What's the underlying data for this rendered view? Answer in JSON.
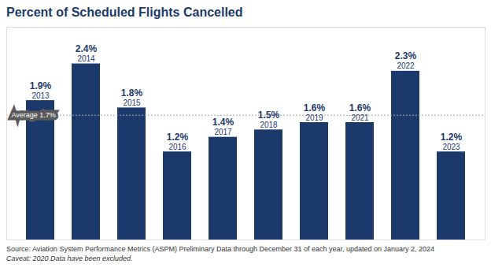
{
  "chart_data": {
    "type": "bar",
    "title": "Percent of Scheduled Flights Cancelled",
    "categories": [
      "2013",
      "2014",
      "2015",
      "2016",
      "2017",
      "2018",
      "2019",
      "2021",
      "2022",
      "2023"
    ],
    "values": [
      1.9,
      2.4,
      1.8,
      1.2,
      1.4,
      1.5,
      1.6,
      1.6,
      2.3,
      1.2
    ],
    "value_labels": [
      "1.9%",
      "2.4%",
      "1.8%",
      "1.2%",
      "1.4%",
      "1.5%",
      "1.6%",
      "1.6%",
      "2.3%",
      "1.2%"
    ],
    "color": "#1b3a6b",
    "ylim": [
      0,
      2.9
    ],
    "average": 1.7,
    "average_label": "Average 1.7%",
    "source": "Source: Aviation System Performance Metrics (ASPM) Preliminary Data through December 31 of each year, updated on January 2, 2024",
    "caveat": "Caveat: 2020 Data have been excluded.",
    "data_labels": true,
    "tick_labels": false,
    "grid": false
  }
}
